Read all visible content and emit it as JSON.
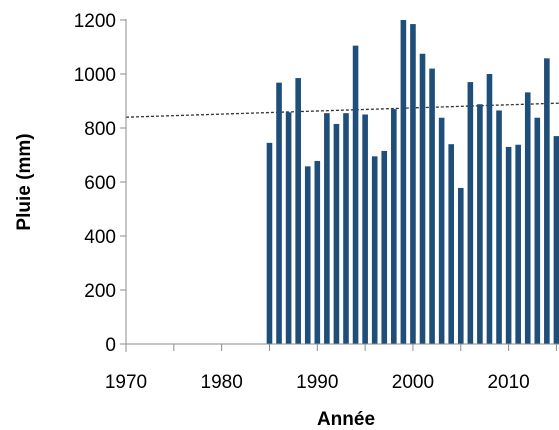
{
  "chart_data": {
    "type": "bar",
    "xlabel": "Année",
    "ylabel": "Pluie (mm)",
    "xlim": [
      1970,
      2016
    ],
    "ylim": [
      0,
      1200
    ],
    "x_ticks": [
      1970,
      1980,
      1990,
      2000,
      2010
    ],
    "y_ticks": [
      0,
      200,
      400,
      600,
      800,
      1000,
      1200
    ],
    "grid": false,
    "legend": "none",
    "bar_color": "#1f4e79",
    "trend_color": "#333333",
    "x": [
      1985,
      1986,
      1987,
      1988,
      1989,
      1990,
      1991,
      1992,
      1993,
      1994,
      1995,
      1996,
      1997,
      1998,
      1999,
      2000,
      2001,
      2002,
      2003,
      2004,
      2005,
      2006,
      2007,
      2008,
      2009,
      2010,
      2011,
      2012,
      2013,
      2014,
      2015
    ],
    "values": [
      745,
      968,
      858,
      985,
      658,
      678,
      855,
      815,
      855,
      1105,
      850,
      695,
      715,
      870,
      1200,
      1185,
      1075,
      1020,
      838,
      740,
      578,
      970,
      888,
      1000,
      865,
      730,
      738,
      932,
      838,
      1058,
      770
    ],
    "trendline": {
      "type": "linear",
      "x": [
        1970,
        2016
      ],
      "y": [
        840,
        892
      ]
    }
  }
}
